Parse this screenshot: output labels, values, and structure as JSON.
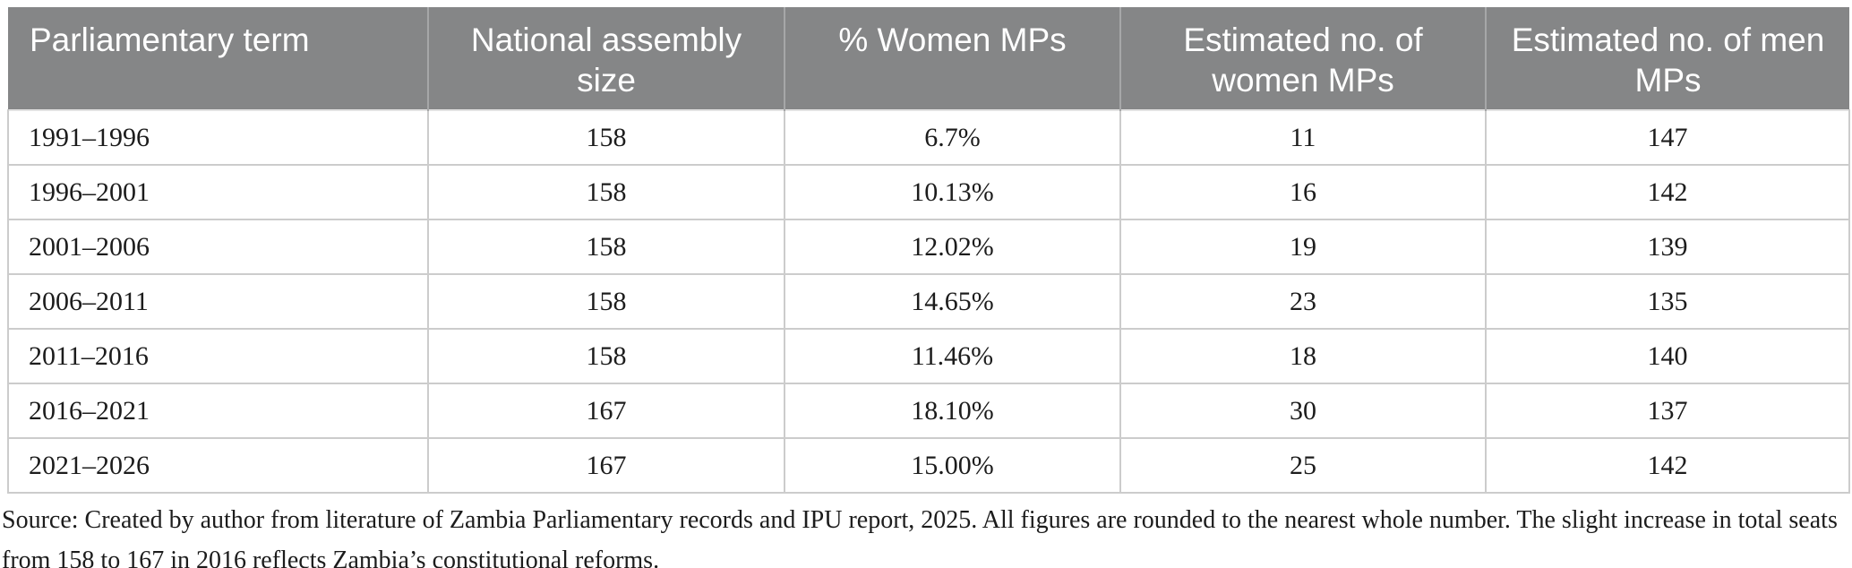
{
  "table": {
    "columns": [
      {
        "label": "Parliamentary term"
      },
      {
        "label": "National assembly size"
      },
      {
        "label": "% Women MPs"
      },
      {
        "label": "Estimated no. of women MPs"
      },
      {
        "label": "Estimated no. of men MPs"
      }
    ],
    "rows": [
      [
        "1991–1996",
        "158",
        "6.7%",
        "11",
        "147"
      ],
      [
        "1996–2001",
        "158",
        "10.13%",
        "16",
        "142"
      ],
      [
        "2001–2006",
        "158",
        "12.02%",
        "19",
        "139"
      ],
      [
        "2006–2011",
        "158",
        "14.65%",
        "23",
        "135"
      ],
      [
        "2011–2016",
        "158",
        "11.46%",
        "18",
        "140"
      ],
      [
        "2016–2021",
        "167",
        "18.10%",
        "30",
        "137"
      ],
      [
        "2021–2026",
        "167",
        "15.00%",
        "25",
        "142"
      ]
    ]
  },
  "source_note": "Source: Created by author from literature of Zambia Parliamentary records and IPU report, 2025. All figures are rounded to the nearest whole number. The slight increase in total seats from 158 to 167 in 2016 reflects Zambia’s constitutional reforms.",
  "colors": {
    "header_bg": "#858687",
    "header_text": "#ffffff",
    "header_divider": "#a6a7a8",
    "grid_line": "#cccccc",
    "body_text": "#1c1c1c"
  }
}
